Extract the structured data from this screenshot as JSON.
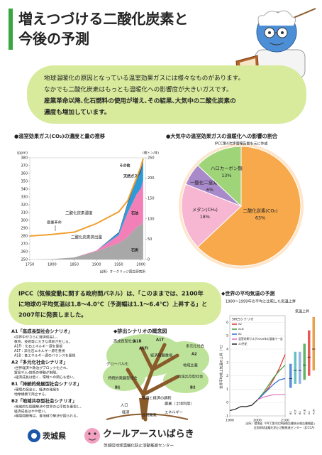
{
  "header": {
    "title_lines": [
      "増えつづける二酸化炭素と",
      "今後の予測"
    ]
  },
  "intro": {
    "lines": [
      "地球温暖化の原因となっている温室効果ガスには様々なものがあります。",
      "なかでも二酸化炭素はもっとも温暖化への影響度が大きいガスです。",
      "産業革命以降､化石燃料の使用が増え､その結果､大気中の二酸化炭素の",
      "濃度も増加しています。"
    ]
  },
  "ipcc": {
    "lines": [
      "IPCC（気候変動に関する政府間パネル）は、「このままでは、2100年",
      "に地球の平均気温は1.8〜4.0℃（予測幅は1.1〜6.4℃）上昇する」と",
      "2007年に発表しました。"
    ]
  },
  "scenarios": {
    "items": [
      {
        "title": "A1「高成長型社会シナリオ」",
        "color": "#d0201a",
        "lines": [
          "・世界中がさらに経済成長し、",
          "教育、技術等に大きな革新が生じる。",
          "A1FI：化石エネルギー源を重視",
          "A1T：非化石エネルギー源を重視",
          "A1B：各エネルギー源のバランスを重視"
        ]
      },
      {
        "title": "A2「多元化社会シナリオ」",
        "color": "#d0201a",
        "lines": [
          "・世界経済や政治がブロック化され、",
          "貿易や人・技術の移動が制限。",
          "・経済成長は低く、環境への関心も低い。"
        ]
      },
      {
        "title": "B1「持続的発展型社会シナリオ」",
        "color": "#1a6ec0",
        "lines": [
          "・環境の保全と、経済の発展を",
          "地球規模で両立する。"
        ]
      },
      {
        "title": "B2「地域共存型社会シナリオ」",
        "color": "#1a6ec0",
        "lines": [
          "・地域的な問題解決や世界の公平性を重視し、",
          "経済成長はやや低い。",
          "・環境問題等は、各地域で解決が図られる。"
        ]
      }
    ],
    "diagram": {
      "title": "◆排出シナリオの概念図",
      "labels": [
        "高成長型社会",
        "A1B",
        "A1FI",
        "A1T",
        "経済発展重視",
        "多元化社会",
        "A2",
        "グローバル化",
        "地域主義",
        "持続的発展型社会",
        "B1",
        "地域共存型社会",
        "B2",
        "環境と経済の調和",
        "人口",
        "経済",
        "技術開発",
        "エネルギー",
        "農業（土地利用）"
      ]
    }
  },
  "footer": {
    "pref": "茨城県",
    "brand": "クールアースいばらき",
    "org": "茨城県地球温暖化防止活動推進センター",
    "sources": [
      "出所）環境省「IPCC第4次評価報告書統合報告書概要」",
      "全国地球温暖化防止活動推進センター（JCCCA）"
    ]
  },
  "chart_data": [
    {
      "type": "area",
      "title": "●温室効果ガス(CO₂)の濃度と量の推移",
      "x": [
        1750,
        1800,
        1850,
        1900,
        1950,
        1970,
        1990,
        2000,
        2005
      ],
      "xlim": [
        1750,
        2010
      ],
      "xticks": [
        1750,
        1800,
        1850,
        1900,
        1950,
        2000
      ],
      "ylabel": "(ppm)",
      "ylim": [
        250,
        380
      ],
      "yticks": [
        250,
        260,
        270,
        280,
        290,
        300,
        310,
        320,
        330,
        340,
        350,
        360,
        370,
        380
      ],
      "y2label": "(億トン/年)",
      "y2lim": [
        0,
        250
      ],
      "y2ticks": [
        0,
        50,
        100,
        150,
        200,
        250
      ],
      "series": [
        {
          "name": "二酸化炭素濃度",
          "color": "#f0a030",
          "values": [
            280,
            282,
            285,
            296,
            311,
            325,
            354,
            369,
            379
          ]
        },
        {
          "name": "石炭",
          "color": "#a8a8a8",
          "axis": "y2",
          "values": [
            0,
            1,
            5,
            20,
            40,
            55,
            80,
            85,
            95
          ]
        },
        {
          "name": "石油",
          "color": "#f27fb8",
          "axis": "y2",
          "values": [
            0,
            0,
            0,
            2,
            20,
            60,
            80,
            90,
            100
          ]
        },
        {
          "name": "天然ガス",
          "color": "#2f9bd6",
          "axis": "y2",
          "values": [
            0,
            0,
            0,
            0,
            5,
            20,
            35,
            40,
            45
          ]
        },
        {
          "name": "その他",
          "color": "#1d4f8f",
          "axis": "y2",
          "values": [
            0,
            0,
            0,
            0,
            2,
            4,
            6,
            8,
            10
          ]
        }
      ],
      "annotations": [
        "産業革命",
        "二酸化炭素排出量"
      ],
      "source": "出所）オークリッジ国立研究所"
    },
    {
      "type": "pie",
      "title": "●大気中の温室効果ガスの温暖化への影響の割合",
      "subtitle": "IPCC第4次評価報告書を元に作成",
      "categories": [
        "二酸化炭素(CO₂)",
        "メタン(CH₄)",
        "一酸化二窒素(N₂O)",
        "ハロカーボン類"
      ],
      "values": [
        63,
        18,
        6,
        13
      ],
      "value_labels": [
        "63%",
        "18%",
        "6%",
        "13%"
      ],
      "colors": [
        "#f7a94c",
        "#f7b6d2",
        "#a889c9",
        "#9fd479"
      ]
    },
    {
      "type": "line",
      "title": "◆世界の平均気温の予測",
      "subtitle": "1980〜1999年の平均と比較した気温上昇",
      "x": [
        1900,
        1920,
        1940,
        1960,
        1980,
        2000,
        2020,
        2040,
        2060,
        2080,
        2100
      ],
      "xlim": [
        1900,
        2100
      ],
      "xticks": [
        1900,
        2000,
        2100
      ],
      "ylabel": "世界平均地上気温の上昇（℃）",
      "ylim": [
        -1,
        6.5
      ],
      "yticks": [
        -1,
        0,
        1,
        2,
        3,
        4,
        5,
        6
      ],
      "legend_title": "SRESシナリオ",
      "series": [
        {
          "name": "A2",
          "color": "#e0302a",
          "values": [
            null,
            null,
            null,
            null,
            null,
            0.2,
            0.6,
            1.1,
            1.8,
            2.6,
            3.6
          ]
        },
        {
          "name": "A1B",
          "color": "#3aa040",
          "values": [
            null,
            null,
            null,
            null,
            null,
            0.2,
            0.7,
            1.3,
            1.9,
            2.4,
            2.8
          ]
        },
        {
          "name": "B1",
          "color": "#2f6fd0",
          "values": [
            null,
            null,
            null,
            null,
            null,
            0.2,
            0.6,
            1.0,
            1.4,
            1.7,
            1.8
          ]
        },
        {
          "name": "温室効果ガスが2000年の濃度で一定",
          "color": "#e070c0",
          "values": [
            null,
            null,
            null,
            null,
            null,
            0.2,
            0.4,
            0.5,
            0.6,
            0.6,
            0.6
          ]
        },
        {
          "name": "20世紀",
          "color": "#222222",
          "values": [
            -0.6,
            -0.5,
            -0.3,
            -0.3,
            -0.2,
            0.2,
            null,
            null,
            null,
            null,
            null
          ]
        }
      ],
      "ranges": {
        "title": "気温上昇",
        "categories": [
          "B1",
          "A1T",
          "B2",
          "A1B",
          "A2",
          "A1FI"
        ],
        "colors": [
          "#2f6fd0",
          "#40b0b0",
          "#7aa0e0",
          "#3aa040",
          "#e0302a",
          "#e08a20"
        ],
        "low": [
          1.1,
          1.4,
          1.4,
          1.7,
          2.0,
          2.4
        ],
        "high": [
          2.9,
          3.8,
          3.8,
          4.4,
          5.4,
          6.4
        ],
        "best": [
          1.8,
          2.4,
          2.4,
          2.8,
          3.4,
          4.0
        ]
      }
    }
  ]
}
